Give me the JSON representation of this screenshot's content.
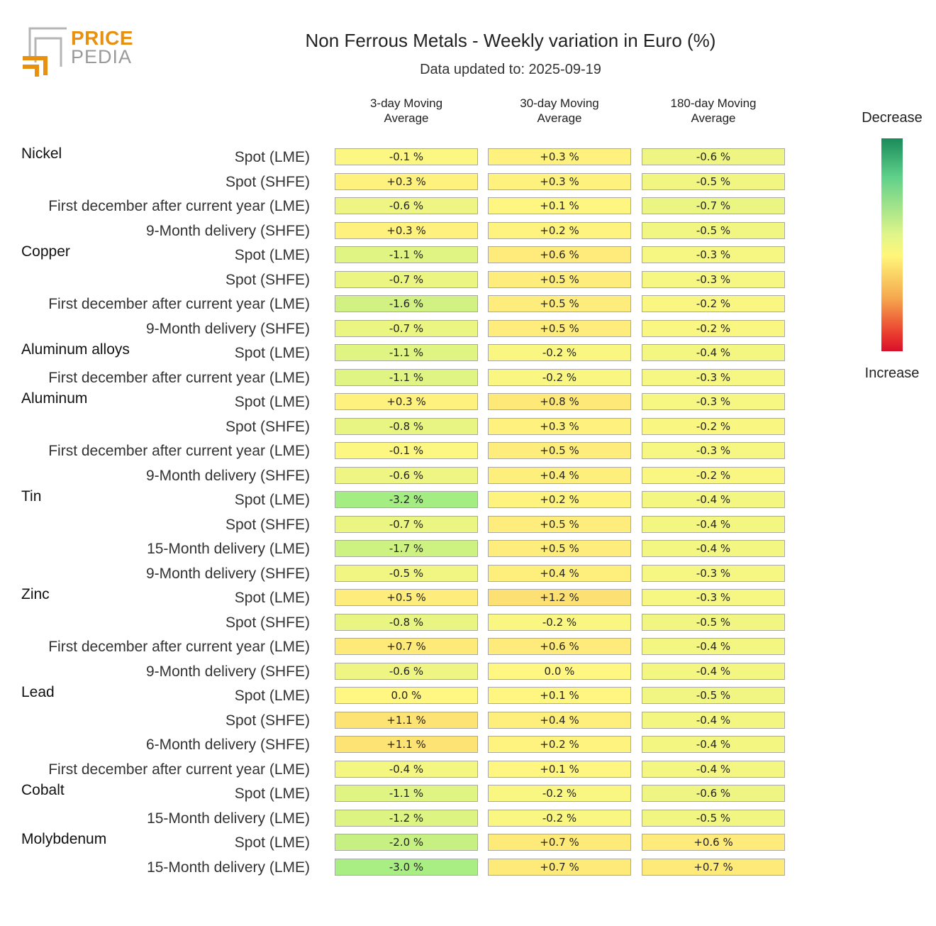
{
  "header": {
    "title": "Non Ferrous Metals - Weekly variation in Euro (%)",
    "subtitle": "Data updated to: 2025-09-19"
  },
  "logo": {
    "line1": "PRICE",
    "line2": "PEDIA"
  },
  "legend": {
    "top_label": "Decrease",
    "bottom_label": "Increase"
  },
  "colors": {
    "accent": "#e8900f",
    "logo_gray": "#9a9a9a"
  },
  "chart_data": {
    "type": "heatmap",
    "columns": [
      "3-day Moving Average",
      "30-day Moving Average",
      "180-day Moving Average"
    ],
    "column_lines": [
      [
        "3-day Moving",
        "Average"
      ],
      [
        "30-day Moving",
        "Average"
      ],
      [
        "180-day Moving",
        "Average"
      ]
    ],
    "groups": [
      {
        "name": "Nickel",
        "rows": [
          {
            "label": "Spot (LME)",
            "values": [
              -0.1,
              0.3,
              -0.6
            ]
          },
          {
            "label": "Spot (SHFE)",
            "values": [
              0.3,
              0.3,
              -0.5
            ]
          },
          {
            "label": "First december after current year (LME)",
            "values": [
              -0.6,
              0.1,
              -0.7
            ]
          },
          {
            "label": "9-Month delivery (SHFE)",
            "values": [
              0.3,
              0.2,
              -0.5
            ]
          }
        ]
      },
      {
        "name": "Copper",
        "rows": [
          {
            "label": "Spot (LME)",
            "values": [
              -1.1,
              0.6,
              -0.3
            ]
          },
          {
            "label": "Spot (SHFE)",
            "values": [
              -0.7,
              0.5,
              -0.3
            ]
          },
          {
            "label": "First december after current year (LME)",
            "values": [
              -1.6,
              0.5,
              -0.2
            ]
          },
          {
            "label": "9-Month delivery (SHFE)",
            "values": [
              -0.7,
              0.5,
              -0.2
            ]
          }
        ]
      },
      {
        "name": "Aluminum alloys",
        "rows": [
          {
            "label": "Spot (LME)",
            "values": [
              -1.1,
              -0.2,
              -0.4
            ]
          },
          {
            "label": "First december after current year (LME)",
            "values": [
              -1.1,
              -0.2,
              -0.3
            ]
          }
        ]
      },
      {
        "name": "Aluminum",
        "rows": [
          {
            "label": "Spot (LME)",
            "values": [
              0.3,
              0.8,
              -0.3
            ]
          },
          {
            "label": "Spot (SHFE)",
            "values": [
              -0.8,
              0.3,
              -0.2
            ]
          },
          {
            "label": "First december after current year (LME)",
            "values": [
              -0.1,
              0.5,
              -0.3
            ]
          },
          {
            "label": "9-Month delivery (SHFE)",
            "values": [
              -0.6,
              0.4,
              -0.2
            ]
          }
        ]
      },
      {
        "name": "Tin",
        "rows": [
          {
            "label": "Spot (LME)",
            "values": [
              -3.2,
              0.2,
              -0.4
            ]
          },
          {
            "label": "Spot (SHFE)",
            "values": [
              -0.7,
              0.5,
              -0.4
            ]
          },
          {
            "label": "15-Month delivery (LME)",
            "values": [
              -1.7,
              0.5,
              -0.4
            ]
          },
          {
            "label": "9-Month delivery (SHFE)",
            "values": [
              -0.5,
              0.4,
              -0.3
            ]
          }
        ]
      },
      {
        "name": "Zinc",
        "rows": [
          {
            "label": "Spot (LME)",
            "values": [
              0.5,
              1.2,
              -0.3
            ]
          },
          {
            "label": "Spot (SHFE)",
            "values": [
              -0.8,
              -0.2,
              -0.5
            ]
          },
          {
            "label": "First december after current year (LME)",
            "values": [
              0.7,
              0.6,
              -0.4
            ]
          },
          {
            "label": "9-Month delivery (SHFE)",
            "values": [
              -0.6,
              0.0,
              -0.4
            ]
          }
        ]
      },
      {
        "name": "Lead",
        "rows": [
          {
            "label": "Spot (LME)",
            "values": [
              0.0,
              0.1,
              -0.5
            ]
          },
          {
            "label": "Spot (SHFE)",
            "values": [
              1.1,
              0.4,
              -0.4
            ]
          },
          {
            "label": "6-Month delivery (SHFE)",
            "values": [
              1.1,
              0.2,
              -0.4
            ]
          },
          {
            "label": "First december after current year (LME)",
            "values": [
              -0.4,
              0.1,
              -0.4
            ]
          }
        ]
      },
      {
        "name": "Cobalt",
        "rows": [
          {
            "label": "Spot (LME)",
            "values": [
              -1.1,
              -0.2,
              -0.6
            ]
          },
          {
            "label": "15-Month delivery (LME)",
            "values": [
              -1.2,
              -0.2,
              -0.5
            ]
          }
        ]
      },
      {
        "name": "Molybdenum",
        "rows": [
          {
            "label": "Spot (LME)",
            "values": [
              -2.0,
              0.7,
              0.6
            ]
          },
          {
            "label": "15-Month delivery (LME)",
            "values": [
              -3.0,
              0.7,
              0.7
            ]
          }
        ]
      }
    ]
  }
}
